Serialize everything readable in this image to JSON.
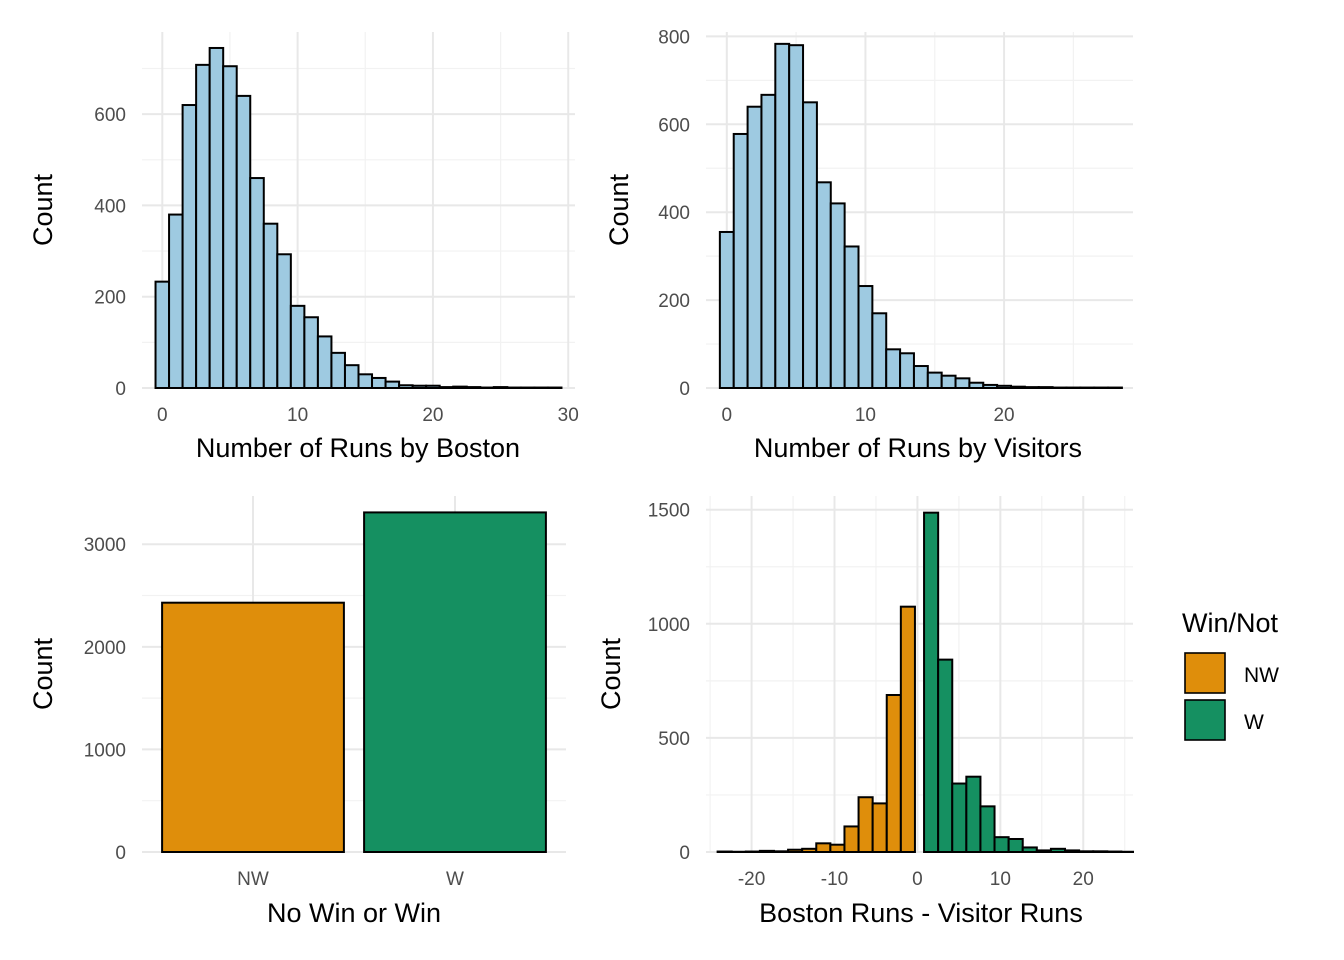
{
  "colors": {
    "histogram_fill": "#9ecae1",
    "outline": "#000000",
    "nw": "#df8e0b",
    "w": "#159061",
    "grid_major": "#e8e8e8",
    "grid_minor": "#f2f2f2"
  },
  "chart_data": [
    {
      "type": "bar",
      "subtype": "histogram",
      "xlabel": "Number of Runs by Boston",
      "ylabel": "Count",
      "xlim": [
        -1.5,
        30.5
      ],
      "ylim": [
        0,
        780
      ],
      "x_ticks": [
        0,
        10,
        20,
        30
      ],
      "x_tick_labels": [
        "0",
        "10",
        "20",
        "30"
      ],
      "y_ticks": [
        0,
        200,
        400,
        600
      ],
      "y_tick_labels": [
        "0",
        "200",
        "400",
        "600"
      ],
      "bin_width": 1,
      "bin_centers": [
        0,
        1,
        2,
        3,
        4,
        5,
        6,
        7,
        8,
        9,
        10,
        11,
        12,
        13,
        14,
        15,
        16,
        17,
        18,
        19,
        20,
        21,
        22,
        23,
        24,
        25,
        26,
        27,
        28,
        29
      ],
      "values": [
        233,
        380,
        620,
        708,
        745,
        705,
        640,
        460,
        360,
        293,
        180,
        155,
        113,
        77,
        50,
        30,
        22,
        14,
        6,
        5,
        5,
        2,
        3,
        2,
        1,
        2,
        1,
        1,
        1,
        1
      ],
      "grid": true
    },
    {
      "type": "bar",
      "subtype": "histogram",
      "xlabel": "Number of Runs by Visitors",
      "ylabel": "Count",
      "xlim": [
        -1.5,
        29.3
      ],
      "ylim": [
        0,
        810
      ],
      "x_ticks": [
        0,
        10,
        20
      ],
      "x_tick_labels": [
        "0",
        "10",
        "20"
      ],
      "y_ticks": [
        0,
        200,
        400,
        600,
        800
      ],
      "y_tick_labels": [
        "0",
        "200",
        "400",
        "600",
        "800"
      ],
      "bin_width": 1,
      "bin_centers": [
        0,
        1,
        2,
        3,
        4,
        5,
        6,
        7,
        8,
        9,
        10,
        11,
        12,
        13,
        14,
        15,
        16,
        17,
        18,
        19,
        20,
        21,
        22,
        23,
        24,
        25,
        26,
        27,
        28
      ],
      "values": [
        355,
        578,
        640,
        667,
        783,
        780,
        650,
        468,
        420,
        322,
        232,
        170,
        88,
        79,
        50,
        35,
        28,
        22,
        12,
        7,
        5,
        3,
        2,
        2,
        1,
        1,
        1,
        1,
        1
      ],
      "grid": true
    },
    {
      "type": "bar",
      "xlabel": "No Win or Win",
      "ylabel": "Count",
      "categories": [
        "NW",
        "W"
      ],
      "values": [
        2430,
        3310
      ],
      "ylim": [
        0,
        3470
      ],
      "y_ticks": [
        0,
        1000,
        2000,
        3000
      ],
      "y_tick_labels": [
        "0",
        "1000",
        "2000",
        "3000"
      ],
      "grid": true
    },
    {
      "type": "bar",
      "subtype": "histogram",
      "xlabel": "Boston Runs - Visitor Runs",
      "ylabel": "Count",
      "xlim": [
        -25.5,
        26
      ],
      "ylim": [
        0,
        1560
      ],
      "x_ticks": [
        -20,
        -10,
        0,
        10,
        20
      ],
      "x_tick_labels": [
        "-20",
        "-10",
        "0",
        "10",
        "20"
      ],
      "y_ticks": [
        0,
        500,
        1000,
        1500
      ],
      "y_tick_labels": [
        "0",
        "500",
        "1000",
        "1500"
      ],
      "bin_width": 1.7,
      "bins": [
        {
          "x0": -24.1,
          "x1": -22.4,
          "value": 2,
          "group": "NW"
        },
        {
          "x0": -22.4,
          "x1": -20.7,
          "value": 1,
          "group": "NW"
        },
        {
          "x0": -20.7,
          "x1": -19.0,
          "value": 2,
          "group": "NW"
        },
        {
          "x0": -19.0,
          "x1": -17.3,
          "value": 5,
          "group": "NW"
        },
        {
          "x0": -17.3,
          "x1": -15.6,
          "value": 3,
          "group": "NW"
        },
        {
          "x0": -15.6,
          "x1": -13.9,
          "value": 10,
          "group": "NW"
        },
        {
          "x0": -13.9,
          "x1": -12.2,
          "value": 14,
          "group": "NW"
        },
        {
          "x0": -12.2,
          "x1": -10.5,
          "value": 38,
          "group": "NW"
        },
        {
          "x0": -10.5,
          "x1": -8.8,
          "value": 32,
          "group": "NW"
        },
        {
          "x0": -8.8,
          "x1": -7.1,
          "value": 112,
          "group": "NW"
        },
        {
          "x0": -7.1,
          "x1": -5.4,
          "value": 240,
          "group": "NW"
        },
        {
          "x0": -5.4,
          "x1": -3.7,
          "value": 213,
          "group": "NW"
        },
        {
          "x0": -3.7,
          "x1": -2.0,
          "value": 688,
          "group": "NW"
        },
        {
          "x0": -2.0,
          "x1": -0.3,
          "value": 1075,
          "group": "NW"
        },
        {
          "x0": -0.3,
          "x1": 0.8,
          "value": 0,
          "group": "NW"
        },
        {
          "x0": 0.8,
          "x1": 2.5,
          "value": 1487,
          "group": "W"
        },
        {
          "x0": 2.5,
          "x1": 4.2,
          "value": 843,
          "group": "W"
        },
        {
          "x0": 4.2,
          "x1": 5.9,
          "value": 300,
          "group": "W"
        },
        {
          "x0": 5.9,
          "x1": 7.6,
          "value": 330,
          "group": "W"
        },
        {
          "x0": 7.6,
          "x1": 9.3,
          "value": 200,
          "group": "W"
        },
        {
          "x0": 9.3,
          "x1": 11.0,
          "value": 65,
          "group": "W"
        },
        {
          "x0": 11.0,
          "x1": 12.7,
          "value": 57,
          "group": "W"
        },
        {
          "x0": 12.7,
          "x1": 14.4,
          "value": 20,
          "group": "W"
        },
        {
          "x0": 14.4,
          "x1": 16.1,
          "value": 7,
          "group": "W"
        },
        {
          "x0": 16.1,
          "x1": 17.8,
          "value": 14,
          "group": "W"
        },
        {
          "x0": 17.8,
          "x1": 19.5,
          "value": 7,
          "group": "W"
        },
        {
          "x0": 19.5,
          "x1": 21.2,
          "value": 3,
          "group": "W"
        },
        {
          "x0": 21.2,
          "x1": 22.9,
          "value": 3,
          "group": "W"
        },
        {
          "x0": 22.9,
          "x1": 24.6,
          "value": 2,
          "group": "W"
        },
        {
          "x0": 24.6,
          "x1": 26.0,
          "value": 1,
          "group": "W"
        }
      ],
      "legend": {
        "title": "Win/Not",
        "position": "right",
        "entries": [
          {
            "label": "NW",
            "group": "NW"
          },
          {
            "label": "W",
            "group": "W"
          }
        ]
      },
      "grid": true
    }
  ]
}
